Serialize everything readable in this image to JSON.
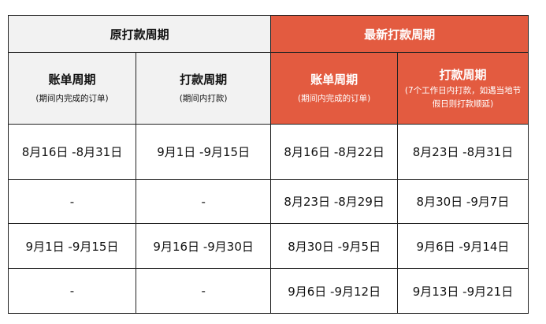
{
  "colors": {
    "old_header_bg": "#f2f2f2",
    "new_header_bg": "#e35b40"
  },
  "header": {
    "old": "原打款周期",
    "new": "最新打款周期",
    "cols": [
      {
        "title": "账单周期",
        "sub": "(期间内完成的订单)"
      },
      {
        "title": "打款周期",
        "sub": "(期间内打款)"
      },
      {
        "title": "账单周期",
        "sub": "(期间内完成的订单)"
      },
      {
        "title": "打款周期",
        "sub": "(7个工作日内打款，如遇当地节假日则打款顺延)"
      }
    ]
  },
  "rows": [
    [
      "8月16日 -8月31日",
      "9月1日 -9月15日",
      "8月16日 -8月22日",
      "8月23日 -8月31日"
    ],
    [
      "-",
      "-",
      "8月23日 -8月29日",
      "8月30日 -9月7日"
    ],
    [
      "9月1日 -9月15日",
      "9月16日 -9月30日",
      "8月30日 -9月5日",
      "9月6日 -9月14日"
    ],
    [
      "-",
      "-",
      "9月6日 -9月12日",
      "9月13日 -9月21日"
    ]
  ]
}
